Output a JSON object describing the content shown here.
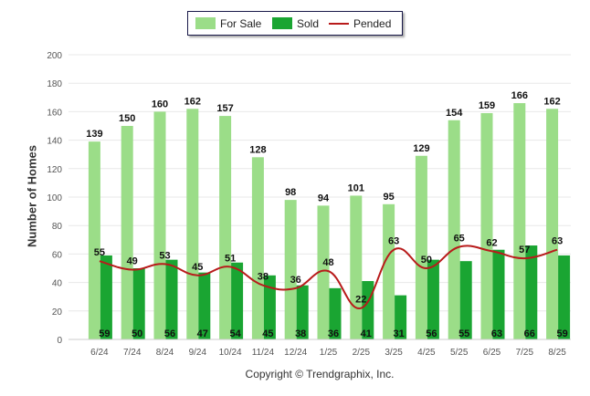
{
  "legend": {
    "for_sale": "For Sale",
    "sold": "Sold",
    "pended": "Pended"
  },
  "copyright": "Copyright © Trendgraphix, Inc.",
  "colors": {
    "for_sale": "#9bdd88",
    "sold": "#1aa532",
    "pended": "#b81b1b",
    "grid": "#e8e8e8",
    "axis": "#cccccc"
  },
  "chart_data": {
    "type": "bar",
    "ylabel": "Number of Homes",
    "xlabel": "",
    "ylim": [
      0,
      200
    ],
    "yticks": [
      "0",
      "20",
      "40",
      "60",
      "80",
      "100",
      "120",
      "140",
      "160",
      "180",
      "200"
    ],
    "grid": true,
    "legend_position": "top-center",
    "categories": [
      "6/24",
      "7/24",
      "8/24",
      "9/24",
      "10/24",
      "11/24",
      "12/24",
      "1/25",
      "2/25",
      "3/25",
      "4/25",
      "5/25",
      "6/25",
      "7/25",
      "8/25"
    ],
    "series": [
      {
        "name": "For Sale",
        "type": "bar",
        "values": [
          139,
          150,
          160,
          162,
          157,
          128,
          98,
          94,
          101,
          95,
          129,
          154,
          159,
          166,
          162
        ]
      },
      {
        "name": "Sold",
        "type": "bar",
        "values": [
          59,
          50,
          56,
          47,
          54,
          45,
          38,
          36,
          41,
          31,
          56,
          55,
          63,
          66,
          59
        ]
      },
      {
        "name": "Pended",
        "type": "line",
        "values": [
          55,
          49,
          53,
          45,
          51,
          38,
          36,
          48,
          22,
          63,
          50,
          65,
          62,
          57,
          63
        ]
      }
    ]
  }
}
